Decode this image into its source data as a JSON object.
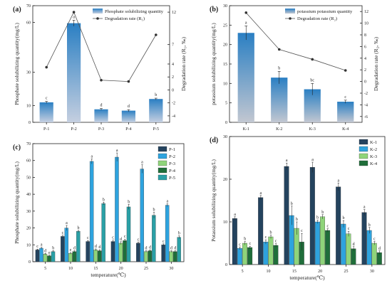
{
  "figure": {
    "colors": {
      "axis": "#222222",
      "bar_top_a": "#2a7fc3",
      "bar_bottom_a": "#c5cfe0",
      "bar_top_b": "#2a7fc3",
      "bar_bottom_b": "#c2c7d1",
      "line": "#555555",
      "P-1": "#24435e",
      "P-2": "#2ea3de",
      "P-3": "#8fd47a",
      "P-4": "#1f6e3a",
      "P-5": "#2aa0a6",
      "K-1": "#24435e",
      "K-2": "#2ea3de",
      "K-3": "#8fd47a",
      "K-4": "#1f6e3a"
    }
  },
  "chart_data": [
    {
      "panel": "(a)",
      "type": "bar",
      "categories": [
        "P-1",
        "P-2",
        "P-3",
        "P-4",
        "P-5"
      ],
      "ylabel": "Phosphate solubilizing quantity(mg/L)",
      "y2label": "Degradation rate (R₁, ‰)",
      "ylim": [
        0,
        70
      ],
      "yticks": [
        0,
        10,
        30,
        60,
        70
      ],
      "y2lim": [
        -5,
        13
      ],
      "y2ticks": [
        -4,
        -2,
        0,
        2,
        4,
        7,
        12.0
      ],
      "series": [
        {
          "name": "Phosphate solubilizing quantity",
          "kind": "bar",
          "values": [
            12.0,
            59.5,
            7.8,
            7.0,
            14.0
          ],
          "errors": [
            0.6,
            1.8,
            0.5,
            0.6,
            0.5
          ],
          "letters": [
            "c",
            "a",
            "d",
            "d",
            "b"
          ]
        },
        {
          "name": "Degradation rate (R₁)",
          "kind": "line",
          "values": [
            3.5,
            12.0,
            1.5,
            1.3,
            8.5
          ]
        }
      ],
      "legend": "top-right"
    },
    {
      "panel": "(b)",
      "type": "bar",
      "categories": [
        "K-1",
        "K-2",
        "K-3",
        "K-4"
      ],
      "ylabel": "potassium solubilizing quantity(mg/L)",
      "y2label": "Degradation rate (R₂, ‰)",
      "ylim": [
        0,
        30
      ],
      "yticks": [
        0,
        5,
        10,
        15,
        20,
        25,
        30
      ],
      "y2lim": [
        -7,
        13
      ],
      "y2ticks": [
        -6,
        -4,
        -2,
        0,
        2,
        4,
        6,
        8,
        10,
        12
      ],
      "series": [
        {
          "name": "potassium potassium quantity",
          "kind": "bar",
          "values": [
            23.0,
            11.5,
            8.5,
            5.3
          ],
          "errors": [
            1.8,
            1.6,
            1.5,
            0.4
          ],
          "letters": [
            "a",
            "b",
            "bc",
            "c"
          ]
        },
        {
          "name": "Degradation rate (R₂)",
          "kind": "line",
          "values": [
            11.8,
            5.5,
            3.8,
            1.9
          ]
        }
      ],
      "legend": "top-right"
    },
    {
      "panel": "(c)",
      "type": "bar",
      "categories": [
        "5",
        "10",
        "15",
        "20",
        "25",
        "30"
      ],
      "xlabel": "temperature(℃)",
      "ylabel": "Phosphate solubilizing quantity(mg/L)",
      "ylim": [
        0,
        70
      ],
      "yticks": [
        0,
        10,
        20,
        30,
        40,
        50,
        60,
        70
      ],
      "series": [
        {
          "name": "P-1",
          "values": [
            7.0,
            15.0,
            12.0,
            12.0,
            11.0,
            10.0
          ],
          "errors": [
            0.5,
            0.7,
            0.6,
            0.8,
            0.7,
            0.6
          ],
          "letters": [
            "c",
            "c",
            "c",
            "c",
            "c",
            "c"
          ]
        },
        {
          "name": "P-2",
          "values": [
            8.0,
            20.0,
            59.5,
            62.0,
            55.0,
            33.5
          ],
          "errors": [
            0.6,
            1.5,
            1.5,
            2.5,
            2.5,
            0.8
          ],
          "letters": [
            "a",
            "a",
            "a",
            "a",
            "a",
            "a"
          ]
        },
        {
          "name": "P-3",
          "values": [
            4.5,
            5.0,
            7.0,
            11.0,
            6.0,
            6.0
          ],
          "errors": [
            0.4,
            0.5,
            0.6,
            0.9,
            0.5,
            0.5
          ],
          "letters": [
            "d",
            "e",
            "d",
            "d",
            "d",
            "d"
          ]
        },
        {
          "name": "P-4",
          "values": [
            3.5,
            6.0,
            6.5,
            12.5,
            6.5,
            6.0
          ],
          "errors": [
            0.4,
            0.5,
            0.6,
            0.9,
            0.5,
            0.5
          ],
          "letters": [
            "e",
            "d",
            "d",
            "c",
            "d",
            "d"
          ]
        },
        {
          "name": "P-5",
          "values": [
            6.0,
            18.0,
            34.5,
            32.5,
            27.5,
            14.5
          ],
          "errors": [
            0.5,
            0.6,
            0.8,
            1.5,
            1.8,
            0.8
          ],
          "letters": [
            "b",
            "b",
            "b",
            "b",
            "b",
            "b"
          ]
        }
      ],
      "legend": "top-right"
    },
    {
      "panel": "(d)",
      "type": "bar",
      "categories": [
        "5",
        "10",
        "15",
        "20",
        "25",
        "30"
      ],
      "xlabel": "temperature(℃)",
      "ylabel": "Potassium solubilizing quantity(mg/L)",
      "ylim": [
        0,
        30
      ],
      "yticks": [
        0,
        10,
        20,
        30
      ],
      "series": [
        {
          "name": "K-1",
          "values": [
            10.8,
            15.7,
            23.0,
            22.8,
            18.2,
            12.2
          ],
          "errors": [
            0.4,
            0.5,
            0.8,
            1.2,
            0.9,
            0.7
          ],
          "letters": [
            "a",
            "a",
            "a",
            "a",
            "a",
            "a"
          ]
        },
        {
          "name": "K-2",
          "values": [
            3.8,
            5.3,
            11.5,
            10.0,
            9.5,
            8.0
          ],
          "errors": [
            0.3,
            0.5,
            2.2,
            0.4,
            0.8,
            0.7
          ],
          "letters": [
            "c",
            "c",
            "b",
            "b",
            "b",
            "b"
          ]
        },
        {
          "name": "K-3",
          "values": [
            5.0,
            6.5,
            8.5,
            11.2,
            7.2,
            5.0
          ],
          "errors": [
            0.4,
            0.4,
            1.5,
            0.5,
            0.6,
            0.4
          ],
          "letters": [
            "b",
            "b",
            "b",
            "b",
            "c",
            "c"
          ]
        },
        {
          "name": "K-4",
          "values": [
            4.0,
            4.5,
            5.3,
            8.0,
            3.7,
            2.8
          ],
          "errors": [
            0.3,
            0.4,
            2.0,
            0.4,
            0.5,
            0.4
          ],
          "letters": [
            "c",
            "c",
            "c",
            "c",
            "d",
            "d"
          ]
        }
      ],
      "legend": "top-right"
    }
  ]
}
